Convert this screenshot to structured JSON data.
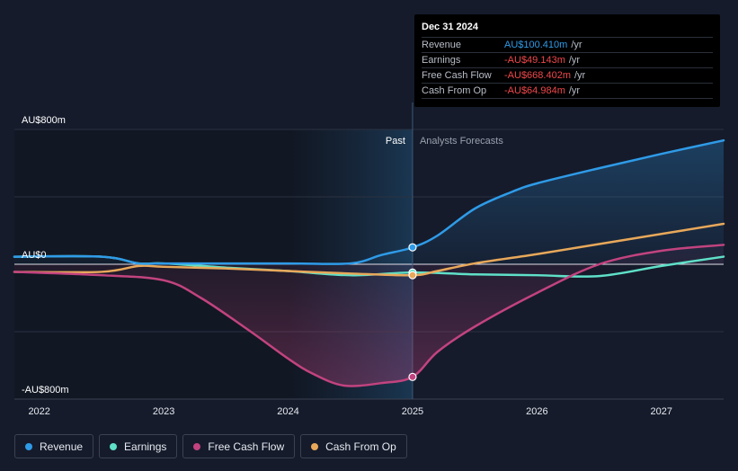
{
  "tooltip": {
    "date": "Dec 31 2024",
    "rows": [
      {
        "name": "Revenue",
        "value": "AU$100.410m",
        "unit": "/yr",
        "color": "#2f9be8"
      },
      {
        "name": "Earnings",
        "value": "-AU$49.143m",
        "unit": "/yr",
        "color": "#f0474b"
      },
      {
        "name": "Free Cash Flow",
        "value": "-AU$668.402m",
        "unit": "/yr",
        "color": "#f0474b"
      },
      {
        "name": "Cash From Op",
        "value": "-AU$64.984m",
        "unit": "/yr",
        "color": "#f0474b"
      }
    ]
  },
  "regions": {
    "past": "Past",
    "forecast": "Analysts Forecasts"
  },
  "legend": [
    {
      "name": "Revenue",
      "color": "#2f9be8"
    },
    {
      "name": "Earnings",
      "color": "#5fe0c8"
    },
    {
      "name": "Free Cash Flow",
      "color": "#c2437f"
    },
    {
      "name": "Cash From Op",
      "color": "#e8a85a"
    }
  ],
  "chart_data": {
    "type": "line",
    "title": "",
    "xlabel": "",
    "ylabel": "",
    "y_ticks": [
      {
        "value": 800,
        "label": "AU$800m"
      },
      {
        "value": 0,
        "label": "AU$0"
      },
      {
        "value": -800,
        "label": "-AU$800m"
      }
    ],
    "x_ticks": [
      {
        "value": 2022,
        "label": "2022"
      },
      {
        "value": 2023,
        "label": "2023"
      },
      {
        "value": 2024,
        "label": "2024"
      },
      {
        "value": 2025,
        "label": "2025"
      },
      {
        "value": 2026,
        "label": "2026"
      },
      {
        "value": 2027,
        "label": "2027"
      }
    ],
    "xlim": [
      2021.8,
      2027.5
    ],
    "ylim": [
      -800,
      800
    ],
    "divider_x": 2025.0,
    "highlight_start_x": 2024.0,
    "grid": true,
    "series": [
      {
        "name": "Revenue",
        "color": "#2f9be8",
        "fill": true,
        "points": [
          [
            2021.8,
            45
          ],
          [
            2022.5,
            45
          ],
          [
            2022.8,
            5
          ],
          [
            2023,
            5
          ],
          [
            2024,
            5
          ],
          [
            2024.5,
            5
          ],
          [
            2024.75,
            55
          ],
          [
            2025,
            100
          ],
          [
            2025.2,
            170
          ],
          [
            2025.5,
            330
          ],
          [
            2025.8,
            430
          ],
          [
            2026,
            480
          ],
          [
            2026.5,
            570
          ],
          [
            2027,
            655
          ],
          [
            2027.5,
            735
          ]
        ]
      },
      {
        "name": "Earnings",
        "color": "#5fe0c8",
        "fill": false,
        "points": [
          [
            2021.8,
            45
          ],
          [
            2022.5,
            45
          ],
          [
            2022.8,
            5
          ],
          [
            2023,
            5
          ],
          [
            2023.5,
            -20
          ],
          [
            2024,
            -40
          ],
          [
            2024.5,
            -65
          ],
          [
            2025,
            -49
          ],
          [
            2025.5,
            -60
          ],
          [
            2026,
            -65
          ],
          [
            2026.5,
            -70
          ],
          [
            2027,
            -10
          ],
          [
            2027.5,
            45
          ]
        ]
      },
      {
        "name": "Free Cash Flow",
        "color": "#c2437f",
        "fill": true,
        "points": [
          [
            2021.8,
            -45
          ],
          [
            2022.5,
            -65
          ],
          [
            2023,
            -95
          ],
          [
            2023.3,
            -200
          ],
          [
            2023.7,
            -400
          ],
          [
            2024,
            -560
          ],
          [
            2024.2,
            -650
          ],
          [
            2024.45,
            -720
          ],
          [
            2024.75,
            -705
          ],
          [
            2025,
            -668
          ],
          [
            2025.2,
            -520
          ],
          [
            2025.5,
            -370
          ],
          [
            2026,
            -170
          ],
          [
            2026.5,
            0
          ],
          [
            2027,
            80
          ],
          [
            2027.5,
            115
          ]
        ]
      },
      {
        "name": "Cash From Op",
        "color": "#e8a85a",
        "fill": false,
        "points": [
          [
            2021.8,
            -45
          ],
          [
            2022.5,
            -45
          ],
          [
            2022.8,
            -10
          ],
          [
            2023,
            -15
          ],
          [
            2023.5,
            -25
          ],
          [
            2024,
            -40
          ],
          [
            2024.5,
            -55
          ],
          [
            2025,
            -65
          ],
          [
            2025.2,
            -40
          ],
          [
            2025.5,
            5
          ],
          [
            2026,
            60
          ],
          [
            2026.5,
            120
          ],
          [
            2027,
            180
          ],
          [
            2027.5,
            240
          ]
        ]
      }
    ],
    "markers": [
      {
        "series": "Revenue",
        "x": 2025.0,
        "y": 100.41
      },
      {
        "series": "Earnings",
        "x": 2025.0,
        "y": -49.143
      },
      {
        "series": "Free Cash Flow",
        "x": 2025.0,
        "y": -668.402
      },
      {
        "series": "Cash From Op",
        "x": 2025.0,
        "y": -64.984
      }
    ]
  }
}
